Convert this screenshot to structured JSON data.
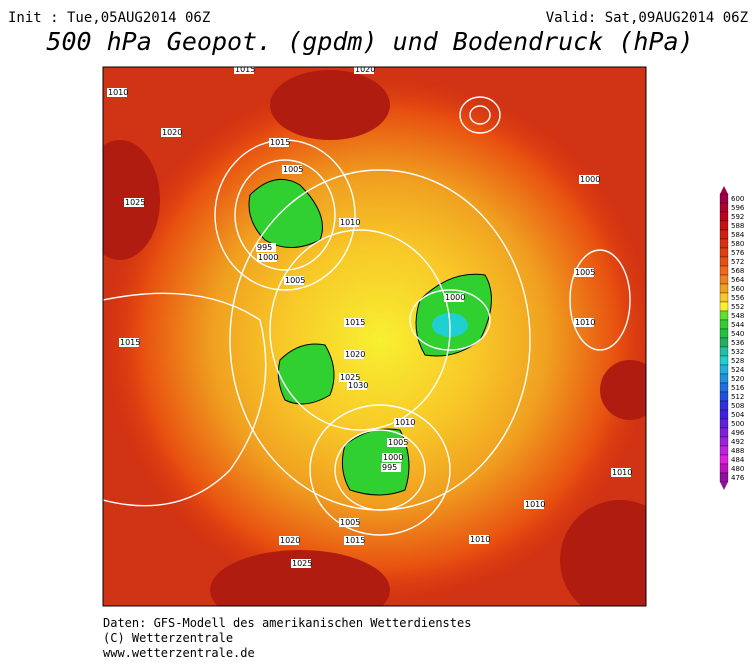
{
  "header": {
    "init": "Init : Tue,05AUG2014 06Z",
    "valid": "Valid: Sat,09AUG2014 06Z",
    "title": "500 hPa Geopot. (gpdm) und Bodendruck (hPa)"
  },
  "colorbar": {
    "levels": [
      600,
      596,
      592,
      588,
      584,
      580,
      576,
      572,
      568,
      564,
      560,
      556,
      552,
      548,
      544,
      540,
      536,
      532,
      528,
      524,
      520,
      516,
      512,
      508,
      504,
      500,
      496,
      492,
      488,
      484,
      480,
      476
    ],
    "colors": [
      "#a0004a",
      "#b00030",
      "#c00020",
      "#c81010",
      "#d02010",
      "#d83010",
      "#e04010",
      "#e85010",
      "#f06818",
      "#f08020",
      "#f0a020",
      "#f8c828",
      "#f8f030",
      "#60e030",
      "#30d030",
      "#20c040",
      "#20b060",
      "#20c0a0",
      "#20d0d0",
      "#20b0e0",
      "#2090e0",
      "#2070e0",
      "#2050e0",
      "#3030e0",
      "#4020e0",
      "#6020e0",
      "#8020e0",
      "#a020e0",
      "#c020e0",
      "#e020e0",
      "#c010c0",
      "#9010a0"
    ]
  },
  "isobars": [
    "1015",
    "1020",
    "1010",
    "1020",
    "1025",
    "1015",
    "1005",
    "995",
    "1000",
    "1005",
    "1010",
    "1015",
    "1025",
    "1020",
    "1030",
    "1000",
    "1005",
    "1010",
    "1000",
    "995",
    "1005",
    "1015",
    "1020",
    "1025",
    "1010",
    "1000",
    "1005",
    "1010",
    "1015",
    "1010",
    "1010"
  ],
  "footer": {
    "line1": "Daten: GFS-Modell des amerikanischen Wetterdienstes",
    "line2": "(C) Wetterzentrale",
    "line3": "www.wetterzentrale.de"
  }
}
